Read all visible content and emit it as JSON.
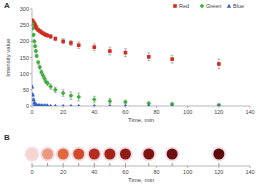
{
  "chart_data": [
    {
      "type": "scatter",
      "title": "A",
      "x_label": "Time, min",
      "y_label": "Intensity value",
      "x": [
        0,
        0.5,
        1,
        1.5,
        2,
        2.5,
        3,
        4,
        5,
        6,
        7,
        8,
        9,
        10,
        12,
        15,
        20,
        25,
        30,
        40,
        50,
        60,
        75,
        90,
        120
      ],
      "series": [
        {
          "name": "Red",
          "color": "#d62a1e",
          "marker": "square",
          "values": [
            265,
            262,
            258,
            255,
            250,
            245,
            240,
            235,
            232,
            228,
            225,
            222,
            220,
            218,
            215,
            208,
            200,
            195,
            188,
            182,
            170,
            165,
            152,
            145,
            130
          ],
          "errors": [
            3,
            3,
            3,
            3,
            3,
            3,
            3,
            4,
            4,
            4,
            4,
            5,
            5,
            5,
            6,
            6,
            8,
            8,
            10,
            10,
            12,
            12,
            12,
            12,
            15
          ]
        },
        {
          "name": "Green",
          "color": "#3db23a",
          "marker": "diamond",
          "values": [
            255,
            240,
            220,
            200,
            185,
            170,
            155,
            135,
            120,
            105,
            95,
            85,
            75,
            70,
            60,
            50,
            40,
            32,
            28,
            20,
            15,
            12,
            8,
            6,
            3
          ],
          "errors": [
            3,
            3,
            4,
            4,
            4,
            5,
            5,
            5,
            6,
            6,
            6,
            6,
            6,
            6,
            8,
            8,
            10,
            12,
            12,
            10,
            8,
            6,
            5,
            4,
            3
          ]
        },
        {
          "name": "Blue",
          "color": "#2f5fd0",
          "marker": "triangle",
          "values": [
            60,
            35,
            20,
            10,
            6,
            4,
            3,
            2,
            2,
            1,
            1,
            1,
            1,
            1,
            0,
            0,
            0,
            0,
            0,
            0,
            0,
            0,
            0,
            0,
            0
          ],
          "errors": [
            4,
            4,
            3,
            2,
            2,
            1,
            1,
            1,
            1,
            1,
            1,
            1,
            1,
            1,
            0,
            0,
            0,
            0,
            0,
            0,
            0,
            0,
            0,
            0,
            0
          ]
        }
      ],
      "xlim": [
        0,
        140
      ],
      "xticks": [
        0,
        20,
        40,
        60,
        80,
        100,
        120,
        140
      ],
      "ylim": [
        0,
        300
      ],
      "yticks": [
        0,
        50,
        100,
        150,
        200,
        250,
        300
      ],
      "legend": "top-right",
      "grid": false
    },
    {
      "type": "strip",
      "title": "B",
      "x_label": "Time, min",
      "x": [
        0,
        10,
        20,
        30,
        40,
        50,
        60,
        75,
        90,
        120
      ],
      "colors": [
        "#f4d6cf",
        "#ea9a80",
        "#e0683f",
        "#d14b2b",
        "#b52b20",
        "#a32318",
        "#8f1b16",
        "#7c1412",
        "#6c0f0f",
        "#5a0b0b"
      ],
      "xlim": [
        0,
        140
      ],
      "xticks": [
        0,
        20,
        40,
        60,
        80,
        100,
        120,
        140
      ]
    }
  ]
}
